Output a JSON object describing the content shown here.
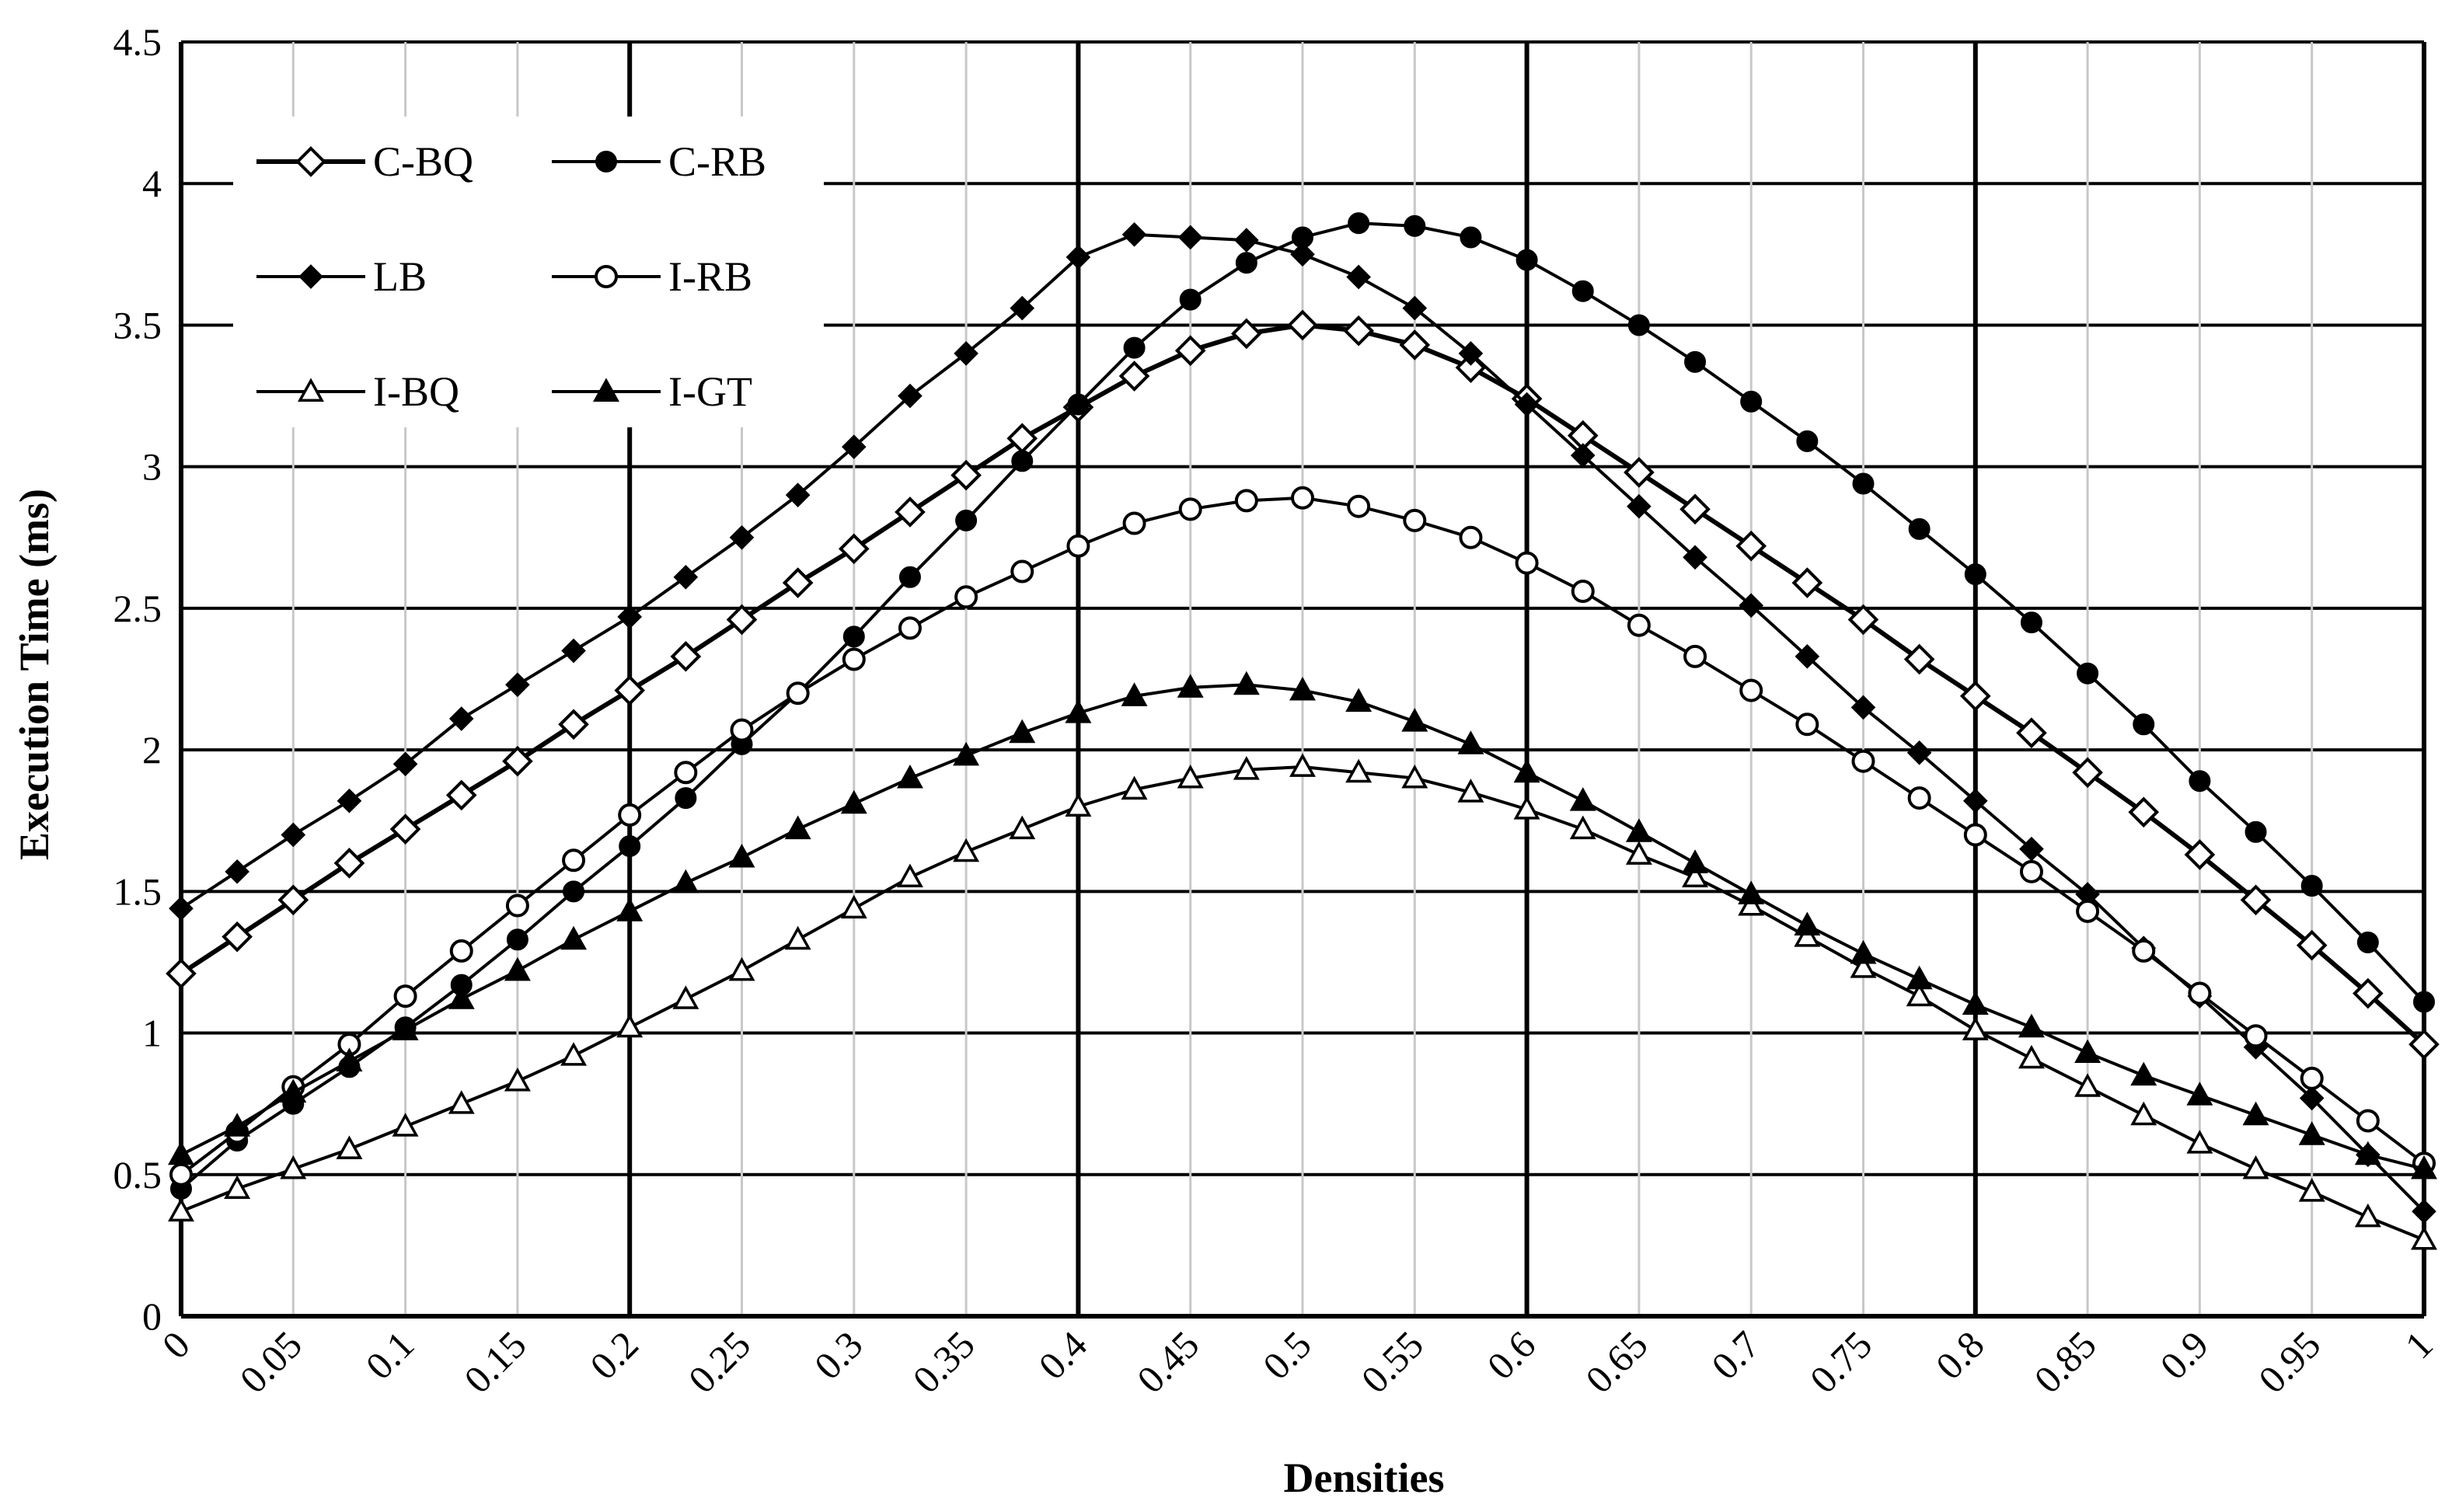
{
  "chart_data": {
    "type": "line",
    "title": "",
    "xlabel": "Densities",
    "ylabel": "Execution Time (ms)",
    "xlim": [
      0,
      1
    ],
    "ylim": [
      0,
      4.5
    ],
    "grid": true,
    "legend_position": "top-left",
    "x_tick_labels": [
      "0",
      "0.05",
      "0.1",
      "0.15",
      "0.2",
      "0.25",
      "0.3",
      "0.35",
      "0.4",
      "0.45",
      "0.5",
      "0.55",
      "0.6",
      "0.65",
      "0.7",
      "0.75",
      "0.8",
      "0.85",
      "0.9",
      "0.95",
      "1"
    ],
    "y_tick_labels": [
      "0",
      "0.5",
      "1",
      "1.5",
      "2",
      "2.5",
      "3",
      "3.5",
      "4",
      "4.5"
    ],
    "x": [
      0,
      0.025,
      0.05,
      0.075,
      0.1,
      0.125,
      0.15,
      0.175,
      0.2,
      0.225,
      0.25,
      0.275,
      0.3,
      0.325,
      0.35,
      0.375,
      0.4,
      0.425,
      0.45,
      0.475,
      0.5,
      0.525,
      0.55,
      0.575,
      0.6,
      0.625,
      0.65,
      0.675,
      0.7,
      0.725,
      0.75,
      0.775,
      0.8,
      0.825,
      0.85,
      0.875,
      0.9,
      0.925,
      0.95,
      0.975,
      1
    ],
    "series": [
      {
        "name": "C-BQ",
        "marker": "diamond-open",
        "line_width": 6,
        "values": [
          1.21,
          1.34,
          1.47,
          1.6,
          1.72,
          1.84,
          1.96,
          2.09,
          2.21,
          2.33,
          2.46,
          2.59,
          2.71,
          2.84,
          2.97,
          3.1,
          3.21,
          3.32,
          3.41,
          3.47,
          3.5,
          3.48,
          3.43,
          3.35,
          3.24,
          3.11,
          2.98,
          2.85,
          2.72,
          2.59,
          2.46,
          2.32,
          2.19,
          2.06,
          1.92,
          1.78,
          1.63,
          1.47,
          1.31,
          1.14,
          0.96
        ]
      },
      {
        "name": "C-RB",
        "marker": "circle-filled",
        "line_width": 4,
        "values": [
          0.45,
          0.62,
          0.75,
          0.88,
          1.02,
          1.17,
          1.33,
          1.5,
          1.66,
          1.83,
          2.02,
          2.2,
          2.4,
          2.61,
          2.81,
          3.02,
          3.22,
          3.42,
          3.59,
          3.72,
          3.81,
          3.86,
          3.85,
          3.81,
          3.73,
          3.62,
          3.5,
          3.37,
          3.23,
          3.09,
          2.94,
          2.78,
          2.62,
          2.45,
          2.27,
          2.09,
          1.89,
          1.71,
          1.52,
          1.32,
          1.11
        ]
      },
      {
        "name": "LB",
        "marker": "diamond-filled",
        "line_width": 4,
        "values": [
          1.44,
          1.57,
          1.7,
          1.82,
          1.95,
          2.11,
          2.23,
          2.35,
          2.47,
          2.61,
          2.75,
          2.9,
          3.07,
          3.25,
          3.4,
          3.56,
          3.74,
          3.82,
          3.81,
          3.8,
          3.75,
          3.67,
          3.56,
          3.4,
          3.22,
          3.04,
          2.86,
          2.68,
          2.51,
          2.33,
          2.15,
          1.99,
          1.82,
          1.65,
          1.49,
          1.3,
          1.13,
          0.95,
          0.77,
          0.57,
          0.37
        ]
      },
      {
        "name": "I-RB",
        "marker": "circle-open",
        "line_width": 4,
        "values": [
          0.5,
          0.65,
          0.81,
          0.96,
          1.13,
          1.29,
          1.45,
          1.61,
          1.77,
          1.92,
          2.07,
          2.2,
          2.32,
          2.43,
          2.54,
          2.63,
          2.72,
          2.8,
          2.85,
          2.88,
          2.89,
          2.86,
          2.81,
          2.75,
          2.66,
          2.56,
          2.44,
          2.33,
          2.21,
          2.09,
          1.96,
          1.83,
          1.7,
          1.57,
          1.43,
          1.29,
          1.14,
          0.99,
          0.84,
          0.69,
          0.54
        ]
      },
      {
        "name": "I-BQ",
        "marker": "triangle-open",
        "line_width": 4,
        "values": [
          0.37,
          0.45,
          0.52,
          0.59,
          0.67,
          0.75,
          0.83,
          0.92,
          1.02,
          1.12,
          1.22,
          1.33,
          1.44,
          1.55,
          1.64,
          1.72,
          1.8,
          1.86,
          1.9,
          1.93,
          1.94,
          1.92,
          1.9,
          1.85,
          1.79,
          1.72,
          1.63,
          1.55,
          1.45,
          1.34,
          1.23,
          1.13,
          1.01,
          0.91,
          0.81,
          0.71,
          0.61,
          0.52,
          0.44,
          0.35,
          0.27
        ]
      },
      {
        "name": "I-GT",
        "marker": "triangle-filled",
        "line_width": 4,
        "values": [
          0.57,
          0.67,
          0.79,
          0.9,
          1.01,
          1.12,
          1.22,
          1.33,
          1.43,
          1.53,
          1.62,
          1.72,
          1.81,
          1.9,
          1.98,
          2.06,
          2.13,
          2.19,
          2.22,
          2.23,
          2.21,
          2.17,
          2.1,
          2.02,
          1.92,
          1.82,
          1.71,
          1.6,
          1.49,
          1.38,
          1.28,
          1.19,
          1.1,
          1.02,
          0.93,
          0.85,
          0.78,
          0.71,
          0.64,
          0.57,
          0.52
        ]
      }
    ]
  }
}
